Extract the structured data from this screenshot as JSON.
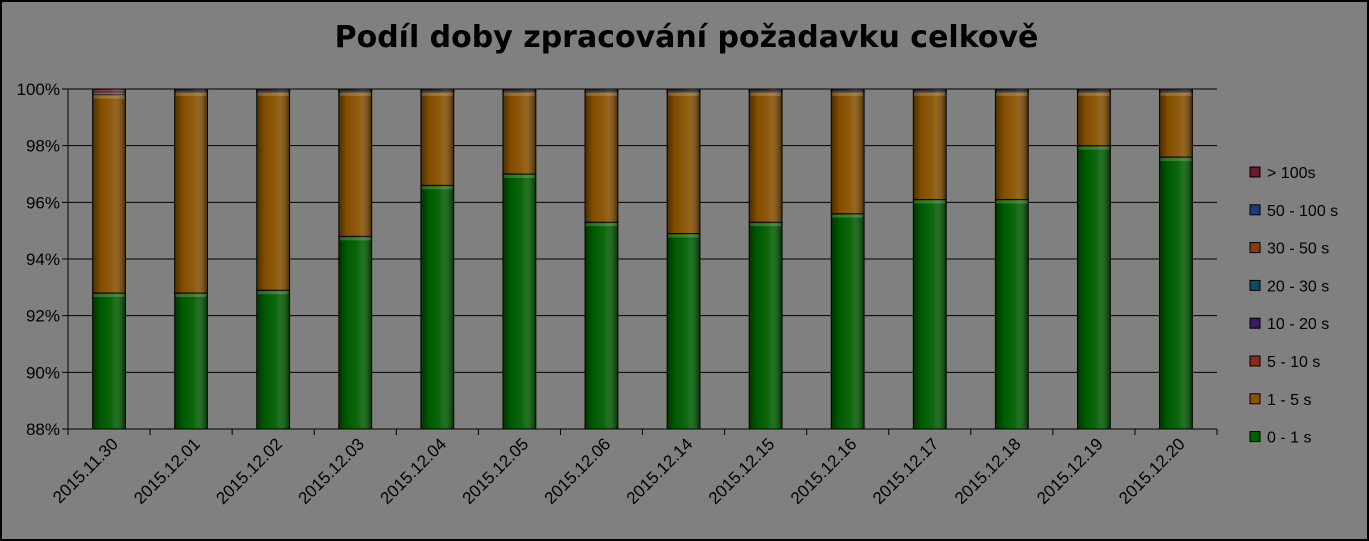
{
  "chart_data": {
    "type": "bar",
    "stacked": "percent",
    "title": "Podíl doby zpracování požadavku celkově",
    "xlabel": "",
    "ylabel": "",
    "ylim": [
      88,
      100
    ],
    "y_ticks": [
      "88%",
      "90%",
      "92%",
      "94%",
      "96%",
      "98%",
      "100%"
    ],
    "y_tick_values": [
      88,
      90,
      92,
      94,
      96,
      98,
      100
    ],
    "grid": true,
    "legend_position": "right",
    "categories": [
      "2015.11.30",
      "2015.12.01",
      "2015.12.02",
      "2015.12.03",
      "2015.12.04",
      "2015.12.05",
      "2015.12.06",
      "2015.12.14",
      "2015.12.15",
      "2015.12.16",
      "2015.12.17",
      "2015.12.18",
      "2015.12.19",
      "2015.12.20"
    ],
    "series": [
      {
        "name": "0 - 1 s",
        "color": "#006000",
        "values": [
          92.8,
          92.8,
          92.9,
          94.8,
          96.6,
          97.0,
          95.3,
          94.9,
          95.3,
          95.6,
          96.1,
          96.1,
          98.0,
          97.6
        ]
      },
      {
        "name": "1 - 5 s",
        "color": "#8a5200",
        "values": [
          7.0,
          7.1,
          7.0,
          5.1,
          3.3,
          2.9,
          4.6,
          5.0,
          4.6,
          4.3,
          3.8,
          3.8,
          1.9,
          2.3
        ]
      },
      {
        "name": "5 - 10 s",
        "color": "#8a2a1a",
        "values": [
          0.1,
          0.05,
          0.05,
          0.05,
          0.05,
          0.05,
          0.05,
          0.05,
          0.05,
          0.05,
          0.05,
          0.05,
          0.05,
          0.05
        ]
      },
      {
        "name": "10 - 20 s",
        "color": "#3c1a5e",
        "values": [
          0,
          0,
          0,
          0,
          0,
          0,
          0,
          0,
          0,
          0,
          0,
          0,
          0,
          0
        ]
      },
      {
        "name": "20 - 30 s",
        "color": "#0c4a6a",
        "values": [
          0,
          0,
          0,
          0,
          0,
          0,
          0,
          0,
          0,
          0,
          0,
          0,
          0,
          0
        ]
      },
      {
        "name": "30 - 50 s",
        "color": "#8a3a10",
        "values": [
          0,
          0,
          0,
          0,
          0,
          0,
          0,
          0,
          0,
          0,
          0,
          0,
          0,
          0
        ]
      },
      {
        "name": "50 - 100 s",
        "color": "#1a3c7a",
        "values": [
          0,
          0,
          0,
          0,
          0,
          0,
          0,
          0,
          0,
          0,
          0,
          0,
          0,
          0
        ]
      },
      {
        "name": "> 100s",
        "color": "#6a1a2a",
        "values": [
          0.1,
          0.05,
          0.05,
          0.05,
          0.05,
          0.05,
          0.05,
          0.05,
          0.05,
          0.05,
          0.05,
          0.05,
          0.05,
          0.05
        ]
      }
    ],
    "legend_order": [
      "> 100s",
      "50 - 100 s",
      "30 - 50 s",
      "20 - 30 s",
      "10 - 20 s",
      "5 - 10 s",
      "1 - 5 s",
      "0 - 1 s"
    ]
  }
}
